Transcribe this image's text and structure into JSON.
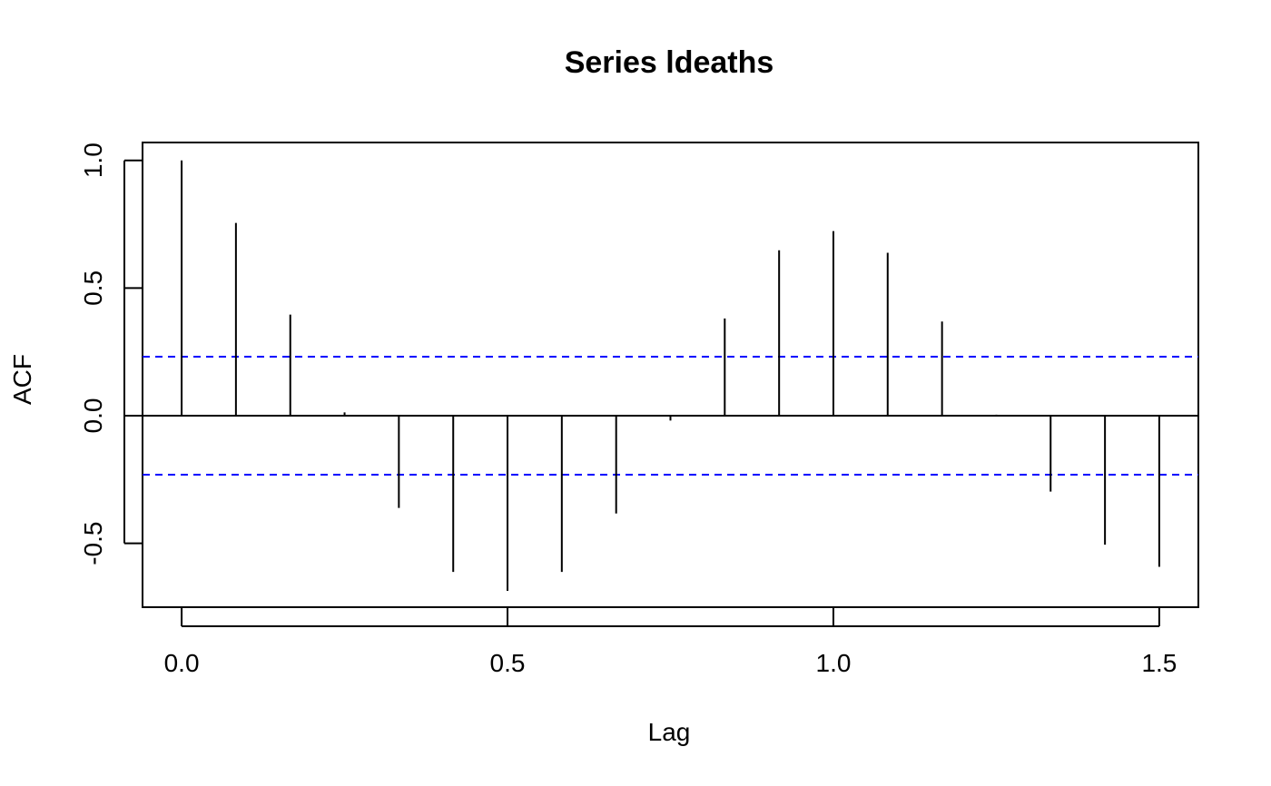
{
  "chart_data": {
    "type": "bar",
    "title": "Series  ldeaths",
    "xlabel": "Lag",
    "ylabel": "ACF",
    "xlim": [
      -0.06,
      1.56
    ],
    "ylim": [
      -0.75,
      1.07
    ],
    "x_ticks": [
      0.0,
      0.5,
      1.0,
      1.5
    ],
    "x_tick_labels": [
      "0.0",
      "0.5",
      "1.0",
      "1.5"
    ],
    "y_ticks": [
      -0.5,
      0.0,
      0.5,
      1.0
    ],
    "y_tick_labels": [
      "-0.5",
      "0.0",
      "0.5",
      "1.0"
    ],
    "lags": [
      0.0,
      0.0833,
      0.1667,
      0.25,
      0.3333,
      0.4167,
      0.5,
      0.5833,
      0.6667,
      0.75,
      0.8333,
      0.9167,
      1.0,
      1.0833,
      1.1667,
      1.25,
      1.3333,
      1.4167,
      1.5
    ],
    "acf": [
      1.0,
      0.755,
      0.396,
      0.013,
      -0.361,
      -0.612,
      -0.686,
      -0.612,
      -0.383,
      -0.019,
      0.381,
      0.648,
      0.723,
      0.638,
      0.369,
      0.004,
      -0.297,
      -0.505,
      -0.592
    ],
    "confidence_bound": 0.231,
    "confidence_color": "#0000FF",
    "spike_color": "#000000",
    "grid": false
  }
}
